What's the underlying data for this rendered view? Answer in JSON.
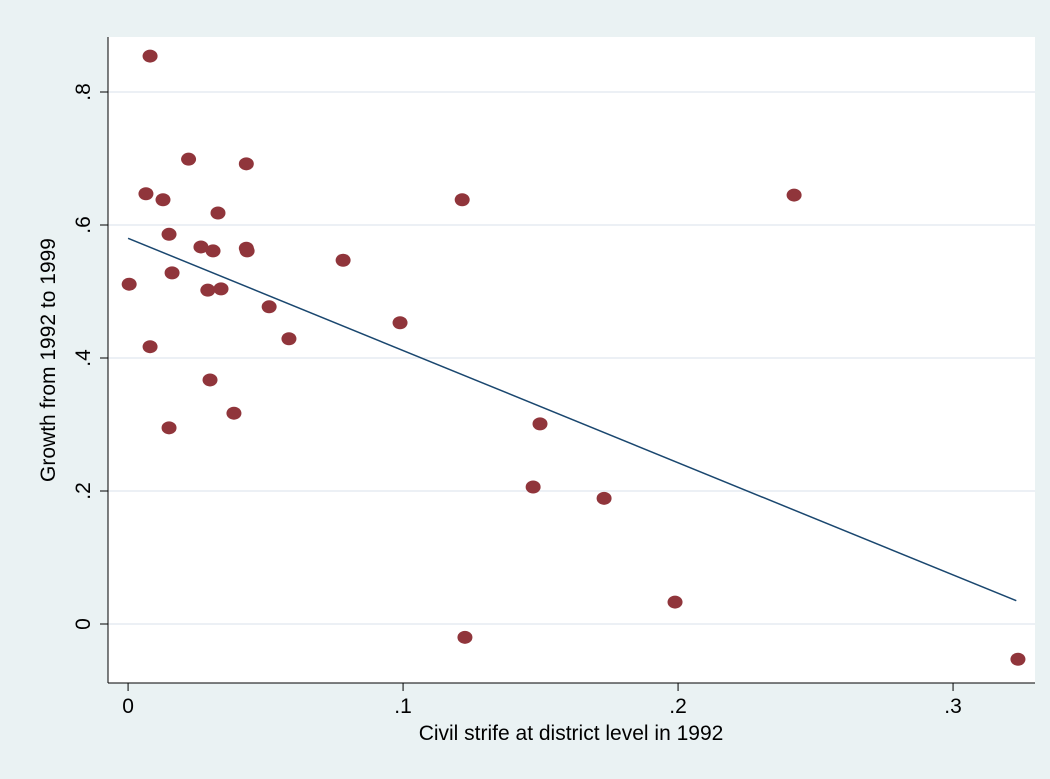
{
  "chart_data": {
    "type": "scatter",
    "x_label": "Civil strife at district level in 1992",
    "y_label": "Growth from 1992 to 1999",
    "color": "#90353b",
    "x": [
      0.008,
      0.0065,
      0.022,
      0.043,
      0.0127,
      0.0327,
      0.1215,
      0.2422,
      0.0149,
      0.0265,
      0.0309,
      0.043,
      0.0433,
      0.0782,
      0.016,
      0.0004,
      0.029,
      0.0338,
      0.0513,
      0.0989,
      0.0585,
      0.008,
      0.0298,
      0.0385,
      0.0149,
      0.1498,
      0.1473,
      0.1731,
      0.1989,
      0.1225,
      0.3236
    ],
    "values": [
      0.854,
      0.647,
      0.699,
      0.692,
      0.638,
      0.618,
      0.638,
      0.645,
      0.586,
      0.567,
      0.561,
      0.565,
      0.561,
      0.547,
      0.528,
      0.511,
      0.502,
      0.504,
      0.477,
      0.453,
      0.429,
      0.417,
      0.367,
      0.317,
      0.295,
      0.301,
      0.206,
      0.189,
      0.033,
      -0.02,
      -0.053
    ],
    "fit": {
      "color": "#1a476f",
      "x": [
        0,
        0.323
      ],
      "values": [
        0.58,
        0.035
      ]
    },
    "xlim": [
      -0.0073,
      0.3298
    ],
    "ylim": [
      -0.0887,
      0.8827
    ],
    "xticks": [
      0,
      {
        "value": 0.1,
        "label": ".1"
      },
      {
        "value": 0.2,
        "label": ".2"
      },
      {
        "value": 0.3,
        "label": ".3"
      }
    ],
    "yticks": [
      0,
      {
        "value": 0.2,
        "label": ".2"
      },
      {
        "value": 0.4,
        "label": ".4"
      },
      {
        "value": 0.6,
        "label": ".6"
      },
      {
        "value": 0.8,
        "label": ".8"
      }
    ],
    "grid": true
  }
}
